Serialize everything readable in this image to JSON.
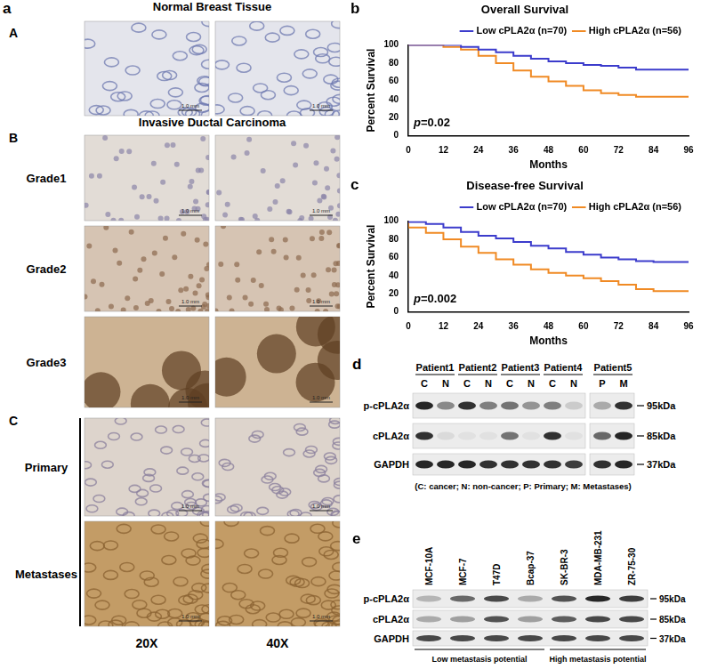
{
  "panel_a": {
    "label": "a",
    "sections": [
      {
        "letter": "A",
        "heading": "Normal Breast Tissue",
        "rows": [
          null
        ]
      },
      {
        "letter": "B",
        "heading": "Invasive Ductal Carcinoma",
        "rows": [
          "Grade1",
          "Grade2",
          "Grade3"
        ]
      },
      {
        "letter": "C",
        "heading": null,
        "rows": [
          "Primary",
          "Metastases"
        ]
      }
    ],
    "columns": [
      "20X",
      "40X"
    ],
    "scale_bar": "1.0 mm"
  },
  "chart_data": [
    {
      "panel": "b",
      "type": "line",
      "title": "Overall Survival",
      "x_label": "Months",
      "y_label": "Percent Survival",
      "annotation": "p=0.02",
      "line_style": "steps",
      "x": [
        0,
        6,
        12,
        18,
        24,
        30,
        36,
        42,
        48,
        54,
        60,
        66,
        72,
        78,
        84,
        90,
        96
      ],
      "series": [
        {
          "name": "Low cPLA2α (n=70)",
          "color": "#3c3ccc",
          "values": [
            100,
            100,
            100,
            100,
            98,
            95,
            92,
            88,
            85,
            82,
            80,
            78,
            77,
            75,
            73,
            73,
            73
          ]
        },
        {
          "name": "High cPLA2α (n=56)",
          "color": "#f08a24",
          "values": [
            100,
            100,
            100,
            98,
            95,
            88,
            80,
            72,
            65,
            60,
            55,
            50,
            47,
            45,
            43,
            43,
            43
          ]
        }
      ],
      "xlim": [
        0,
        96
      ],
      "xticks": [
        0,
        12,
        24,
        36,
        48,
        60,
        72,
        84,
        96
      ],
      "ylim": [
        0,
        100
      ],
      "yticks": [
        0,
        20,
        40,
        60,
        80,
        100
      ],
      "grid": false,
      "legend": "upper right"
    },
    {
      "panel": "c",
      "type": "line",
      "title": "Disease-free Survival",
      "x_label": "Months",
      "y_label": "Percent Survival",
      "annotation": "p=0.002",
      "line_style": "steps",
      "x": [
        0,
        6,
        12,
        18,
        24,
        30,
        36,
        42,
        48,
        54,
        60,
        66,
        72,
        78,
        84,
        90,
        96
      ],
      "series": [
        {
          "name": "Low cPLA2α (n=70)",
          "color": "#3c3ccc",
          "values": [
            100,
            99,
            97,
            93,
            88,
            84,
            81,
            77,
            73,
            70,
            66,
            63,
            60,
            58,
            56,
            55,
            55
          ]
        },
        {
          "name": "High cPLA2α (n=56)",
          "color": "#f08a24",
          "values": [
            100,
            93,
            87,
            80,
            72,
            65,
            58,
            52,
            47,
            43,
            40,
            37,
            34,
            30,
            25,
            23,
            23
          ]
        }
      ],
      "xlim": [
        0,
        96
      ],
      "xticks": [
        0,
        12,
        24,
        36,
        48,
        60,
        72,
        84,
        96
      ],
      "ylim": [
        0,
        100
      ],
      "yticks": [
        0,
        20,
        40,
        60,
        80,
        100
      ],
      "grid": false,
      "legend": "upper right"
    }
  ],
  "panel_d": {
    "label": "d",
    "patients": [
      {
        "name": "Patient1",
        "lanes": [
          "C",
          "N"
        ]
      },
      {
        "name": "Patient2",
        "lanes": [
          "C",
          "N"
        ]
      },
      {
        "name": "Patient3",
        "lanes": [
          "C",
          "N"
        ]
      },
      {
        "name": "Patient4",
        "lanes": [
          "C",
          "N"
        ]
      },
      {
        "name": "Patient5",
        "lanes": [
          "P",
          "M"
        ]
      }
    ],
    "rows": [
      "p-cPLA2α",
      "cPLA2α",
      "GAPDH"
    ],
    "markers": [
      "95kDa",
      "85kDa",
      "37kDa"
    ],
    "note": "(C: cancer; N: non-cancer; P: Primary; M: Metastases)"
  },
  "panel_e": {
    "label": "e",
    "groups": [
      {
        "label": "Low metastasis potential",
        "cell_lines": [
          "MCF-10A",
          "MCF-7",
          "T47D",
          "Bcap-37"
        ]
      },
      {
        "label": "High metastasis potential",
        "cell_lines": [
          "SK-BR-3",
          "MDA-MB-231",
          "ZR-75-30"
        ]
      }
    ],
    "rows": [
      "p-cPLA2α",
      "cPLA2α",
      "GAPDH"
    ],
    "markers": [
      "95kDa",
      "85kDa",
      "37kDa"
    ]
  }
}
